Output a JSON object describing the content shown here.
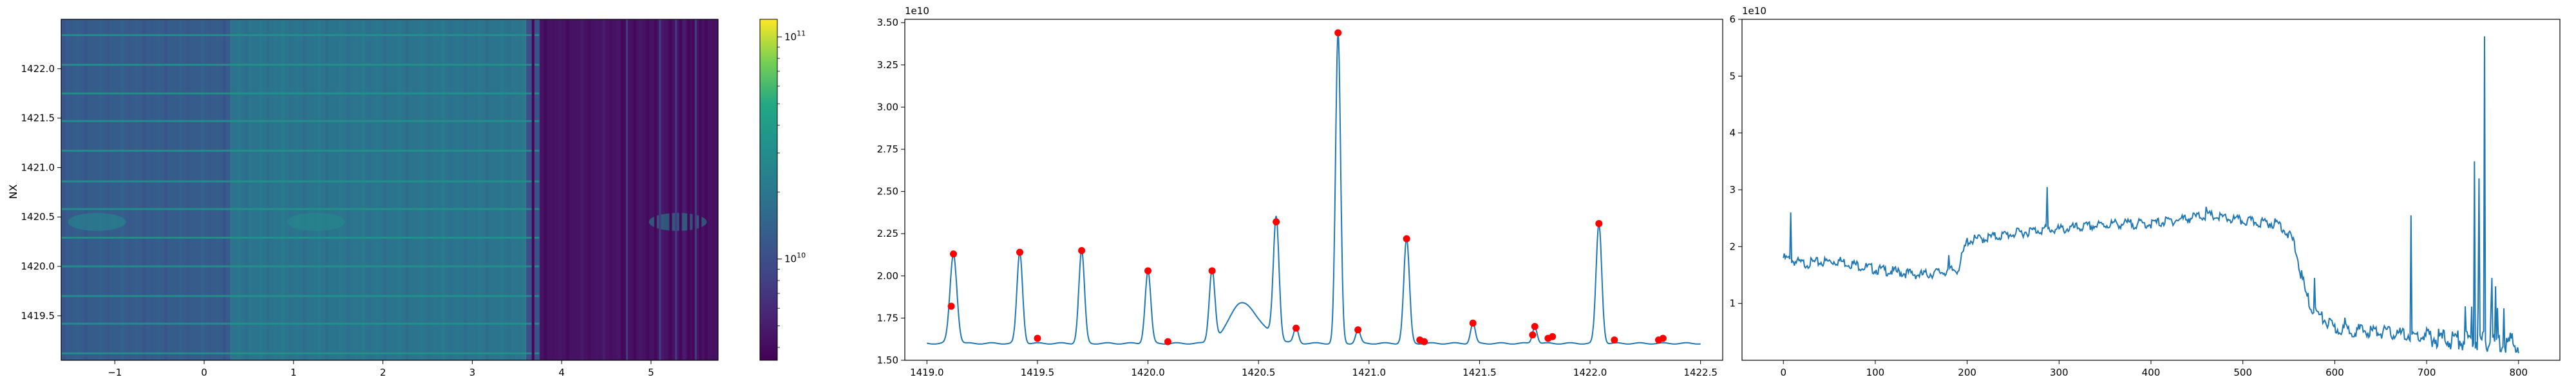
{
  "chart_data": [
    {
      "type": "heatmap",
      "title": "",
      "xlabel": "",
      "ylabel": "NX",
      "xlim": [
        -1.6,
        5.75
      ],
      "ylim": [
        1419.05,
        1422.5
      ],
      "x_ticks": [
        -1,
        0,
        1,
        2,
        3,
        4,
        5
      ],
      "x_tick_labels": [
        "−1",
        "0",
        "1",
        "2",
        "3",
        "4",
        "5"
      ],
      "y_ticks": [
        1419.5,
        1420.0,
        1420.5,
        1421.0,
        1421.5,
        1422.0
      ],
      "y_tick_labels": [
        "1419.5",
        "1420.0",
        "1420.5",
        "1421.0",
        "1421.5",
        "1422.0"
      ],
      "colormap": "viridis",
      "colorbar": {
        "scale": "log",
        "range": [
          3500000000.0,
          120000000000.0
        ],
        "tick_labels": [
          {
            "base": "10",
            "exp": "10"
          },
          {
            "base": "10",
            "exp": "11"
          }
        ],
        "tick_values": [
          10000000000.0,
          100000000000.0
        ]
      },
      "column_profile": [
        {
          "x_from": -1.6,
          "x_to": 0.3,
          "level": 0.36
        },
        {
          "x_from": 0.3,
          "x_to": 3.6,
          "level": 0.48
        },
        {
          "x_from": 3.6,
          "x_to": 3.75,
          "level": 0.3
        },
        {
          "x_from": 3.75,
          "x_to": 5.75,
          "level": 0.06
        }
      ],
      "bright_rows": [
        1419.12,
        1419.42,
        1419.7,
        1420.0,
        1420.29,
        1420.58,
        1420.86,
        1421.17,
        1421.47,
        1421.75,
        1422.04,
        1422.34
      ],
      "dark_stripes": [
        3.68,
        4.68,
        4.82,
        5.05,
        5.22,
        5.33,
        5.42,
        5.48,
        5.55
      ]
    },
    {
      "type": "line",
      "title": "",
      "xlabel": "",
      "ylabel": "",
      "y_offset_label": {
        "base": "1e10"
      },
      "xlim": [
        1418.9,
        1422.6
      ],
      "ylim": [
        1.5,
        3.52
      ],
      "x_ticks": [
        1419.0,
        1419.5,
        1420.0,
        1420.5,
        1421.0,
        1421.5,
        1422.0,
        1422.5
      ],
      "x_tick_labels": [
        "1419.0",
        "1419.5",
        "1420.0",
        "1420.5",
        "1421.0",
        "1421.5",
        "1422.0",
        "1422.5"
      ],
      "y_ticks": [
        1.5,
        1.75,
        2.0,
        2.25,
        2.5,
        2.75,
        3.0,
        3.25,
        3.5
      ],
      "y_tick_labels": [
        "1.50",
        "1.75",
        "2.00",
        "2.25",
        "2.50",
        "2.75",
        "3.00",
        "3.25",
        "3.50"
      ],
      "series_color": "#1f77b4",
      "baseline": 1.6,
      "x_range": [
        1419.0,
        1422.5
      ],
      "peaks": [
        {
          "x": 1419.12,
          "y": 2.13,
          "w": 0.022
        },
        {
          "x": 1419.42,
          "y": 2.14,
          "w": 0.018
        },
        {
          "x": 1419.7,
          "y": 2.15,
          "w": 0.018
        },
        {
          "x": 1420.0,
          "y": 2.03,
          "w": 0.018
        },
        {
          "x": 1420.29,
          "y": 2.03,
          "w": 0.018
        },
        {
          "x": 1420.58,
          "y": 2.32,
          "w": 0.018
        },
        {
          "x": 1420.86,
          "y": 3.44,
          "w": 0.016
        },
        {
          "x": 1421.17,
          "y": 2.22,
          "w": 0.018
        },
        {
          "x": 1422.04,
          "y": 2.31,
          "w": 0.018
        },
        {
          "x": 1421.47,
          "y": 1.72,
          "w": 0.015
        },
        {
          "x": 1421.75,
          "y": 1.7,
          "w": 0.015
        },
        {
          "x": 1420.67,
          "y": 1.69,
          "w": 0.015
        },
        {
          "x": 1420.95,
          "y": 1.68,
          "w": 0.015
        }
      ],
      "bump": {
        "x": 1420.42,
        "y": 1.84,
        "w": 0.09
      },
      "markers": [
        {
          "x": 1419.11,
          "y": 1.82
        },
        {
          "x": 1419.12,
          "y": 2.13
        },
        {
          "x": 1419.42,
          "y": 2.14
        },
        {
          "x": 1419.5,
          "y": 1.63
        },
        {
          "x": 1419.7,
          "y": 2.15
        },
        {
          "x": 1420.0,
          "y": 2.03
        },
        {
          "x": 1420.09,
          "y": 1.61
        },
        {
          "x": 1420.29,
          "y": 2.03
        },
        {
          "x": 1420.58,
          "y": 2.32
        },
        {
          "x": 1420.67,
          "y": 1.69
        },
        {
          "x": 1420.86,
          "y": 3.44
        },
        {
          "x": 1420.95,
          "y": 1.68
        },
        {
          "x": 1421.17,
          "y": 2.22
        },
        {
          "x": 1421.23,
          "y": 1.62
        },
        {
          "x": 1421.25,
          "y": 1.61
        },
        {
          "x": 1421.47,
          "y": 1.72
        },
        {
          "x": 1421.74,
          "y": 1.65
        },
        {
          "x": 1421.75,
          "y": 1.7
        },
        {
          "x": 1421.81,
          "y": 1.63
        },
        {
          "x": 1421.83,
          "y": 1.64
        },
        {
          "x": 1422.04,
          "y": 2.31
        },
        {
          "x": 1422.11,
          "y": 1.62
        },
        {
          "x": 1422.31,
          "y": 1.62
        },
        {
          "x": 1422.33,
          "y": 1.63
        }
      ],
      "marker_color": "#ff0000"
    },
    {
      "type": "line",
      "title": "",
      "xlabel": "",
      "ylabel": "",
      "y_offset_label": {
        "base": "1e10"
      },
      "xlim": [
        -45,
        845
      ],
      "ylim": [
        0,
        6
      ],
      "x_ticks": [
        0,
        100,
        200,
        300,
        400,
        500,
        600,
        700,
        800
      ],
      "x_tick_labels": [
        "0",
        "100",
        "200",
        "300",
        "400",
        "500",
        "600",
        "700",
        "800"
      ],
      "y_ticks": [
        1,
        2,
        3,
        4,
        5,
        6
      ],
      "y_tick_labels": [
        "1",
        "2",
        "3",
        "4",
        "5",
        "6"
      ],
      "series_color": "#1f77b4",
      "envelope": [
        [
          0,
          1.8
        ],
        [
          20,
          1.7
        ],
        [
          60,
          1.75
        ],
        [
          100,
          1.6
        ],
        [
          150,
          1.5
        ],
        [
          190,
          1.6
        ],
        [
          200,
          2.1
        ],
        [
          240,
          2.2
        ],
        [
          280,
          2.3
        ],
        [
          300,
          2.3
        ],
        [
          360,
          2.4
        ],
        [
          400,
          2.4
        ],
        [
          460,
          2.55
        ],
        [
          500,
          2.45
        ],
        [
          540,
          2.4
        ],
        [
          555,
          2.1
        ],
        [
          568,
          1.2
        ],
        [
          575,
          0.9
        ],
        [
          600,
          0.55
        ],
        [
          650,
          0.5
        ],
        [
          700,
          0.4
        ],
        [
          740,
          0.35
        ],
        [
          800,
          0.3
        ]
      ],
      "spikes": [
        {
          "x": 8,
          "y": 2.6
        },
        {
          "x": 180,
          "y": 1.85
        },
        {
          "x": 287,
          "y": 3.05
        },
        {
          "x": 460,
          "y": 2.7
        },
        {
          "x": 578,
          "y": 1.45
        },
        {
          "x": 611,
          "y": 0.75
        },
        {
          "x": 683,
          "y": 2.55
        },
        {
          "x": 752,
          "y": 3.5
        },
        {
          "x": 757,
          "y": 3.2
        },
        {
          "x": 763,
          "y": 5.7
        },
        {
          "x": 771,
          "y": 1.45
        },
        {
          "x": 775,
          "y": 1.3
        }
      ]
    }
  ]
}
